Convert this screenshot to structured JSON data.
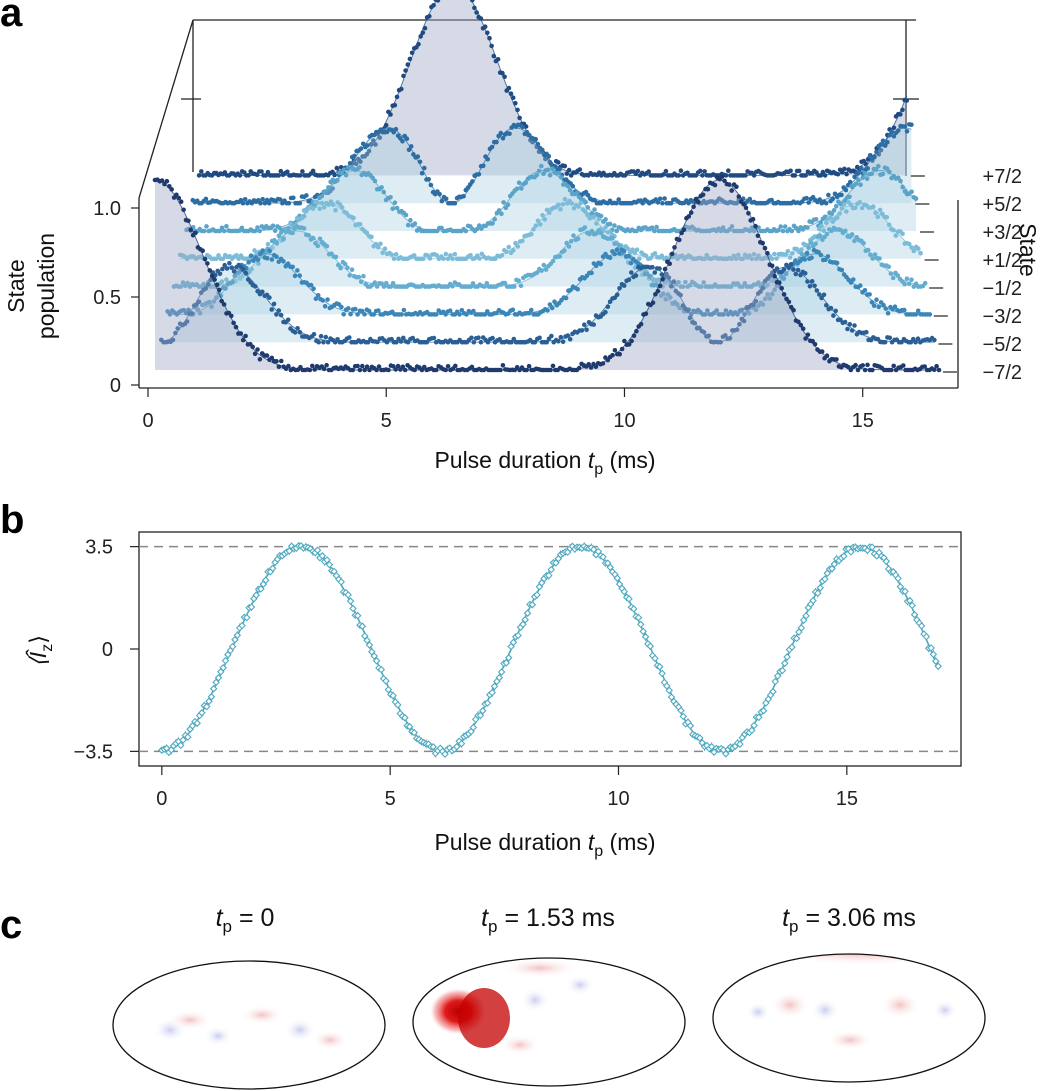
{
  "figure": {
    "panel_a_label": "a",
    "panel_b_label": "b",
    "panel_c_label": "c"
  },
  "chart_data": [
    {
      "panel": "a",
      "type": "area",
      "title": "",
      "xlabel_main": "Pulse duration ",
      "xlabel_var": "t",
      "xlabel_sub": "p",
      "xlabel_unit": " (ms)",
      "ylabel_line1": "State",
      "ylabel_line2": "population",
      "zlabel": "State",
      "xlim": [
        0,
        17
      ],
      "ylim": [
        0,
        1
      ],
      "x_ticks": [
        "0",
        "5",
        "10",
        "15"
      ],
      "y_ticks": [
        "0",
        "0.5",
        "1.0"
      ],
      "rabi_period_ms": 12.24,
      "states": [
        "−7/2",
        "−5/2",
        "−3/2",
        "−1/2",
        "+1/2",
        "+3/2",
        "+5/2",
        "+7/2"
      ],
      "series_colors": [
        "#1f3b6e",
        "#2a5f95",
        "#3b86b8",
        "#64acd0",
        "#7cbcd8",
        "#5aa3c9",
        "#2c6ea4",
        "#1f4a82"
      ]
    },
    {
      "panel": "b",
      "type": "scatter",
      "title": "",
      "xlabel_main": "Pulse duration ",
      "xlabel_var": "t",
      "xlabel_sub": "p",
      "xlabel_unit": " (ms)",
      "ylabel": "⟨Î",
      "ylabel_sub": "z",
      "ylabel_close": "⟩",
      "xlim": [
        -0.5,
        17.5
      ],
      "ylim": [
        -4.0,
        4.0
      ],
      "x_ticks": [
        "0",
        "5",
        "10",
        "15"
      ],
      "y_ticks": [
        "3.5",
        "0",
        "−3.5"
      ],
      "dashed_lines": [
        3.5,
        -3.5
      ],
      "amplitude": 3.5,
      "period_ms": 6.12,
      "x_end": 17.0,
      "color": "#4fa9bf"
    },
    {
      "panel": "c",
      "type": "heatmap",
      "projections": [
        {
          "var": "t",
          "sub": "p",
          "text": " = 0",
          "value_ms": 0
        },
        {
          "var": "t",
          "sub": "p",
          "text": " = 1.53 ms",
          "value_ms": 1.53
        },
        {
          "var": "t",
          "sub": "p",
          "text": " = 3.06 ms",
          "value_ms": 3.06
        }
      ]
    }
  ]
}
